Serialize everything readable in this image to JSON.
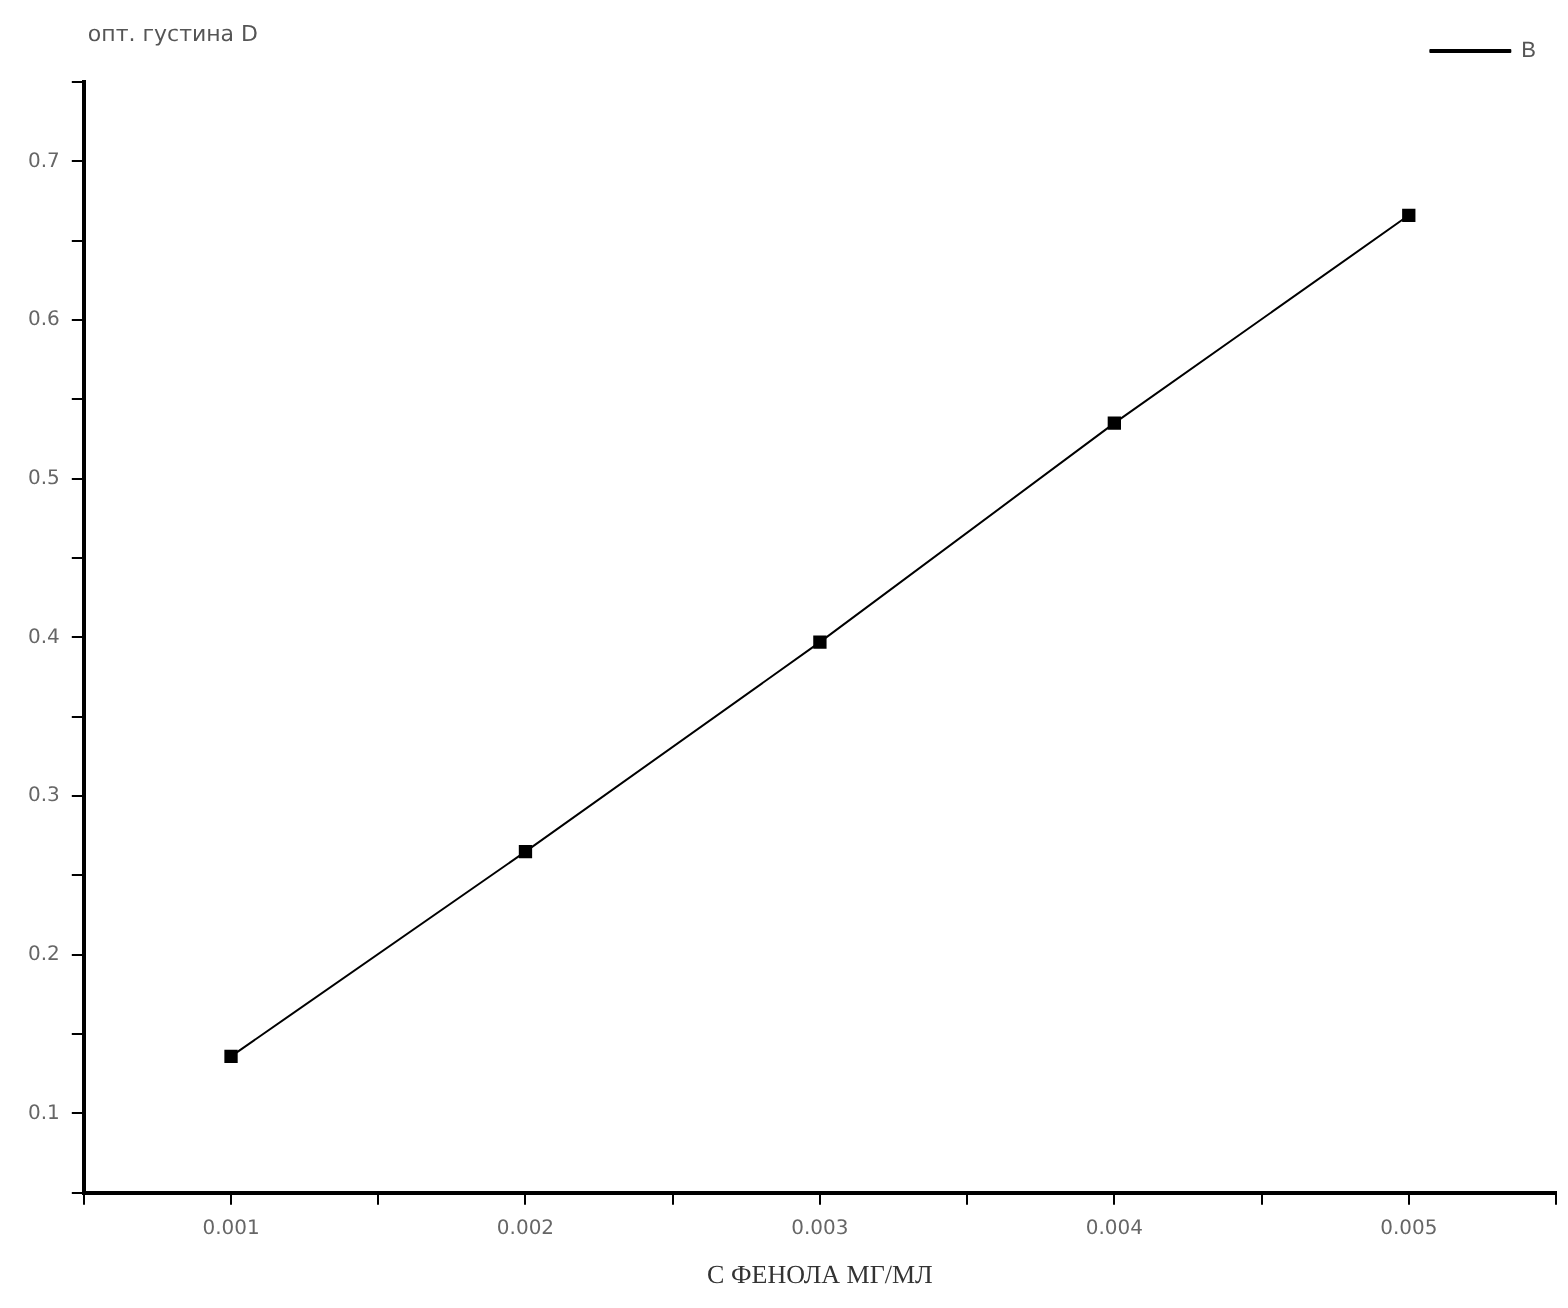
{
  "chart_data": {
    "type": "line",
    "xlabel": "С ФЕНОЛА МГ/МЛ",
    "ylabel": "опт. густина D",
    "x": [
      0.001,
      0.002,
      0.003,
      0.004,
      0.005
    ],
    "series": [
      {
        "name": "B",
        "color": "#000000",
        "values": [
          0.136,
          0.265,
          0.397,
          0.535,
          0.666
        ]
      }
    ],
    "xlim": [
      0.0005,
      0.0055
    ],
    "xticks": [
      {
        "value": 0.0005,
        "label": null
      },
      0.001,
      {
        "value": 0.0015,
        "label": null
      },
      0.002,
      {
        "value": 0.0025,
        "label": null
      },
      0.003,
      {
        "value": 0.0035,
        "label": null
      },
      0.004,
      {
        "value": 0.0045,
        "label": null
      },
      0.005,
      {
        "value": 0.0055,
        "label": null
      }
    ],
    "ylim": [
      0.05,
      0.75
    ],
    "yticks": [
      {
        "value": 0.05,
        "label": null
      },
      0.1,
      {
        "value": 0.15,
        "label": null
      },
      0.2,
      {
        "value": 0.25,
        "label": null
      },
      0.3,
      {
        "value": 0.35,
        "label": null
      },
      0.4,
      {
        "value": 0.45,
        "label": null
      },
      0.5,
      {
        "value": 0.55,
        "label": null
      },
      0.6,
      {
        "value": 0.65,
        "label": null
      },
      0.7,
      {
        "value": 0.75,
        "label": null
      }
    ],
    "legend": "top right",
    "marker": "square",
    "line_style": "solid",
    "grid": false
  }
}
